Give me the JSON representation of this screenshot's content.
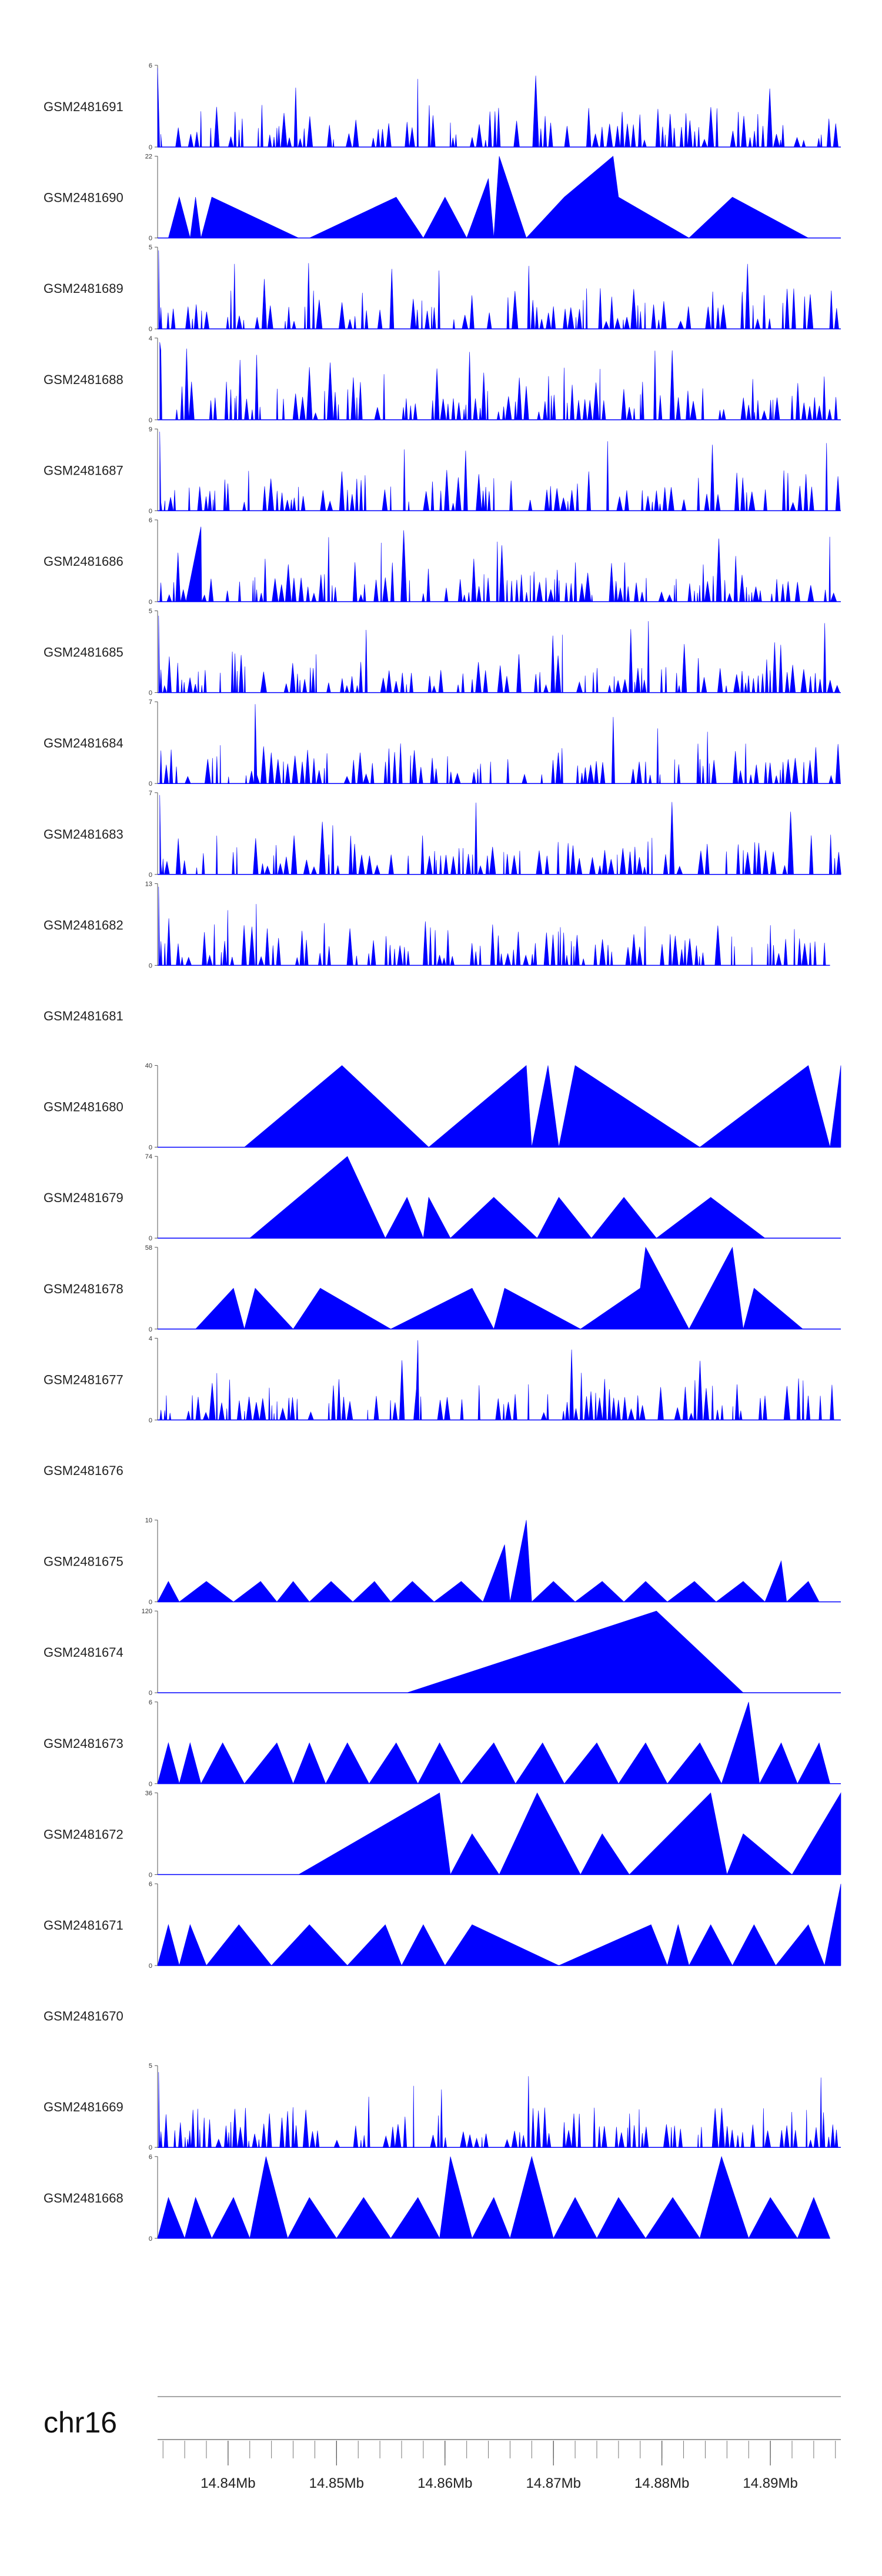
{
  "chart_data": {
    "type": "area",
    "color": "#0000ff",
    "chromosome": "chr16",
    "xlim": [
      14.8335,
      14.8965
    ],
    "x_ticks": [
      {
        "value": 14.84,
        "label": "14.84Mb"
      },
      {
        "value": 14.85,
        "label": "14.85Mb"
      },
      {
        "value": 14.86,
        "label": "14.86Mb"
      },
      {
        "value": 14.87,
        "label": "14.87Mb"
      },
      {
        "value": 14.88,
        "label": "14.88Mb"
      },
      {
        "value": 14.89,
        "label": "14.89Mb"
      }
    ],
    "tracks": [
      {
        "name": "GSM2481691",
        "ymax": 6,
        "ymax_label": "6",
        "ymin_label": "0",
        "pattern": "dense",
        "seed": 11,
        "points": [
          [
            14.8335,
            5.8
          ],
          [
            14.8338,
            0
          ],
          [
            14.8635,
            0
          ]
        ]
      },
      {
        "name": "GSM2481690",
        "ymax": 22,
        "ymax_label": "22",
        "ymin_label": "0",
        "pattern": "sparse",
        "seed": 23,
        "points": [
          [
            14.8345,
            0
          ],
          [
            14.8355,
            11
          ],
          [
            14.8365,
            0
          ],
          [
            14.837,
            11
          ],
          [
            14.8375,
            0
          ],
          [
            14.8385,
            11
          ],
          [
            14.8465,
            0
          ],
          [
            14.8475,
            0
          ],
          [
            14.8555,
            11
          ],
          [
            14.858,
            0
          ],
          [
            14.86,
            11
          ],
          [
            14.862,
            0
          ],
          [
            14.864,
            16
          ],
          [
            14.8645,
            0
          ],
          [
            14.865,
            22
          ],
          [
            14.8675,
            0
          ],
          [
            14.871,
            11
          ],
          [
            14.8755,
            22
          ],
          [
            14.876,
            11
          ],
          [
            14.8825,
            0
          ],
          [
            14.8865,
            11
          ],
          [
            14.8935,
            0
          ]
        ]
      },
      {
        "name": "GSM2481689",
        "ymax": 5,
        "ymax_label": "5",
        "ymin_label": "0",
        "pattern": "dense",
        "seed": 37,
        "points": [
          [
            14.8336,
            4.8
          ],
          [
            14.834,
            0
          ]
        ]
      },
      {
        "name": "GSM2481688",
        "ymax": 4,
        "ymax_label": "4",
        "ymin_label": "0",
        "pattern": "dense",
        "seed": 41,
        "points": [
          [
            14.8337,
            3.8
          ],
          [
            14.8341,
            0
          ]
        ]
      },
      {
        "name": "GSM2481687",
        "ymax": 9,
        "ymax_label": "9",
        "ymin_label": "0",
        "pattern": "dense",
        "seed": 53,
        "points": [
          [
            14.8337,
            8.7
          ],
          [
            14.8342,
            0
          ]
        ]
      },
      {
        "name": "GSM2481686",
        "ymax": 6,
        "ymax_label": "6",
        "ymin_label": "0",
        "pattern": "dense",
        "seed": 67,
        "points": [
          [
            14.8375,
            5.5
          ],
          [
            14.838,
            0
          ]
        ]
      },
      {
        "name": "GSM2481685",
        "ymax": 5,
        "ymax_label": "5",
        "ymin_label": "0",
        "pattern": "dense",
        "seed": 79,
        "points": [
          [
            14.8336,
            4.7
          ],
          [
            14.834,
            0
          ]
        ]
      },
      {
        "name": "GSM2481684",
        "ymax": 7,
        "ymax_label": "7",
        "ymin_label": "0",
        "pattern": "dense",
        "seed": 83,
        "points": [
          [
            14.8425,
            6.8
          ],
          [
            14.843,
            0
          ]
        ]
      },
      {
        "name": "GSM2481683",
        "ymax": 7,
        "ymax_label": "7",
        "ymin_label": "0",
        "pattern": "dense",
        "seed": 97,
        "points": [
          [
            14.8337,
            6.8
          ],
          [
            14.8341,
            0
          ]
        ]
      },
      {
        "name": "GSM2481682",
        "ymax": 13,
        "ymax_label": "13",
        "ymin_label": "0",
        "pattern": "dense",
        "seed": 101,
        "xend": 14.8955,
        "points": [
          [
            14.8336,
            12.5
          ],
          [
            14.834,
            0
          ]
        ]
      },
      {
        "name": "GSM2481681",
        "ymax": 0,
        "ymax_label": "",
        "ymin_label": "",
        "pattern": "empty",
        "seed": 0,
        "points": []
      },
      {
        "name": "GSM2481680",
        "ymax": 40,
        "ymax_label": "40",
        "ymin_label": "0",
        "pattern": "sparse",
        "seed": 3,
        "points": [
          [
            14.8415,
            0
          ],
          [
            14.8505,
            40
          ],
          [
            14.8585,
            0
          ],
          [
            14.8675,
            40
          ],
          [
            14.868,
            0
          ],
          [
            14.8695,
            40
          ],
          [
            14.8705,
            0
          ],
          [
            14.872,
            40
          ],
          [
            14.8835,
            0
          ],
          [
            14.8935,
            40
          ],
          [
            14.8955,
            0
          ],
          [
            14.8965,
            40
          ]
        ]
      },
      {
        "name": "GSM2481679",
        "ymax": 74,
        "ymax_label": "74",
        "ymin_label": "0",
        "pattern": "sparse",
        "seed": 5,
        "points": [
          [
            14.842,
            0
          ],
          [
            14.851,
            74
          ],
          [
            14.8545,
            0
          ],
          [
            14.8565,
            37
          ],
          [
            14.858,
            0
          ],
          [
            14.8585,
            37
          ],
          [
            14.8605,
            0
          ],
          [
            14.8605,
            0
          ],
          [
            14.8645,
            37
          ],
          [
            14.8685,
            0
          ],
          [
            14.8705,
            37
          ],
          [
            14.8735,
            0
          ],
          [
            14.8765,
            37
          ],
          [
            14.8795,
            0
          ],
          [
            14.8845,
            37
          ],
          [
            14.8895,
            0
          ]
        ]
      },
      {
        "name": "GSM2481678",
        "ymax": 58,
        "ymax_label": "58",
        "ymin_label": "0",
        "pattern": "sparse",
        "seed": 7,
        "points": [
          [
            14.837,
            0
          ],
          [
            14.8405,
            29
          ],
          [
            14.8415,
            0
          ],
          [
            14.8425,
            29
          ],
          [
            14.846,
            0
          ],
          [
            14.8485,
            29
          ],
          [
            14.855,
            0
          ],
          [
            14.8625,
            29
          ],
          [
            14.8645,
            0
          ],
          [
            14.8655,
            29
          ],
          [
            14.8725,
            0
          ],
          [
            14.878,
            29
          ],
          [
            14.8785,
            58
          ],
          [
            14.8825,
            0
          ],
          [
            14.8865,
            58
          ],
          [
            14.8875,
            0
          ],
          [
            14.8885,
            29
          ],
          [
            14.893,
            0
          ]
        ]
      },
      {
        "name": "GSM2481677",
        "ymax": 4,
        "ymax_label": "4",
        "ymin_label": "0",
        "pattern": "dense",
        "seed": 113,
        "points": [
          [
            14.8575,
            3.9
          ],
          [
            14.858,
            0
          ]
        ]
      },
      {
        "name": "GSM2481676",
        "ymax": 0,
        "ymax_label": "",
        "ymin_label": "",
        "pattern": "empty",
        "seed": 0,
        "points": []
      },
      {
        "name": "GSM2481675",
        "ymax": 10,
        "ymax_label": "10",
        "ymin_label": "0",
        "pattern": "sparse",
        "seed": 9,
        "points": [
          [
            14.8335,
            0
          ],
          [
            14.8345,
            2.5
          ],
          [
            14.8355,
            0
          ],
          [
            14.838,
            2.5
          ],
          [
            14.8405,
            0
          ],
          [
            14.843,
            2.5
          ],
          [
            14.8445,
            0
          ],
          [
            14.846,
            2.5
          ],
          [
            14.8475,
            0
          ],
          [
            14.8495,
            2.5
          ],
          [
            14.8515,
            0
          ],
          [
            14.8535,
            2.5
          ],
          [
            14.855,
            0
          ],
          [
            14.857,
            2.5
          ],
          [
            14.859,
            0
          ],
          [
            14.8615,
            2.5
          ],
          [
            14.8635,
            0
          ],
          [
            14.8655,
            7
          ],
          [
            14.866,
            0
          ],
          [
            14.8675,
            10
          ],
          [
            14.868,
            0
          ],
          [
            14.87,
            2.5
          ],
          [
            14.872,
            0
          ],
          [
            14.8745,
            2.5
          ],
          [
            14.8765,
            0
          ],
          [
            14.8785,
            2.5
          ],
          [
            14.8805,
            0
          ],
          [
            14.883,
            2.5
          ],
          [
            14.885,
            0
          ],
          [
            14.8875,
            2.5
          ],
          [
            14.8895,
            0
          ],
          [
            14.891,
            5
          ],
          [
            14.8915,
            0
          ],
          [
            14.8935,
            2.5
          ],
          [
            14.8945,
            0
          ]
        ]
      },
      {
        "name": "GSM2481674",
        "ymax": 120,
        "ymax_label": "120",
        "ymin_label": "0",
        "pattern": "sparse",
        "seed": 13,
        "points": [
          [
            14.8565,
            0
          ],
          [
            14.8795,
            120
          ],
          [
            14.8875,
            0
          ]
        ]
      },
      {
        "name": "GSM2481673",
        "ymax": 6,
        "ymax_label": "6",
        "ymin_label": "0",
        "pattern": "sparse",
        "seed": 17,
        "points": [
          [
            14.8335,
            0
          ],
          [
            14.8345,
            3
          ],
          [
            14.8355,
            0
          ],
          [
            14.8365,
            3
          ],
          [
            14.8375,
            0
          ],
          [
            14.8395,
            3
          ],
          [
            14.8415,
            0
          ],
          [
            14.8445,
            3
          ],
          [
            14.846,
            0
          ],
          [
            14.8475,
            3
          ],
          [
            14.849,
            0
          ],
          [
            14.851,
            3
          ],
          [
            14.853,
            0
          ],
          [
            14.8555,
            3
          ],
          [
            14.8575,
            0
          ],
          [
            14.8595,
            3
          ],
          [
            14.8615,
            0
          ],
          [
            14.8645,
            3
          ],
          [
            14.8665,
            0
          ],
          [
            14.869,
            3
          ],
          [
            14.871,
            0
          ],
          [
            14.874,
            3
          ],
          [
            14.876,
            0
          ],
          [
            14.8785,
            3
          ],
          [
            14.8805,
            0
          ],
          [
            14.8835,
            3
          ],
          [
            14.8855,
            0
          ],
          [
            14.888,
            6
          ],
          [
            14.889,
            0
          ],
          [
            14.891,
            3
          ],
          [
            14.8925,
            0
          ],
          [
            14.8945,
            3
          ],
          [
            14.8955,
            0
          ]
        ]
      },
      {
        "name": "GSM2481672",
        "ymax": 36,
        "ymax_label": "36",
        "ymin_label": "0",
        "pattern": "sparse",
        "seed": 19,
        "points": [
          [
            14.8465,
            0
          ],
          [
            14.8595,
            36
          ],
          [
            14.8605,
            0
          ],
          [
            14.8625,
            18
          ],
          [
            14.865,
            0
          ],
          [
            14.8685,
            36
          ],
          [
            14.8725,
            0
          ],
          [
            14.8745,
            18
          ],
          [
            14.877,
            0
          ],
          [
            14.8845,
            36
          ],
          [
            14.886,
            0
          ],
          [
            14.8875,
            18
          ],
          [
            14.892,
            0
          ],
          [
            14.8965,
            36
          ]
        ]
      },
      {
        "name": "GSM2481671",
        "ymax": 6,
        "ymax_label": "6",
        "ymin_label": "0",
        "pattern": "sparse",
        "seed": 29,
        "points": [
          [
            14.8335,
            0
          ],
          [
            14.8345,
            3
          ],
          [
            14.8355,
            0
          ],
          [
            14.8365,
            3
          ],
          [
            14.838,
            0
          ],
          [
            14.841,
            3
          ],
          [
            14.844,
            0
          ],
          [
            14.8475,
            3
          ],
          [
            14.851,
            0
          ],
          [
            14.8545,
            3
          ],
          [
            14.856,
            0
          ],
          [
            14.858,
            3
          ],
          [
            14.86,
            0
          ],
          [
            14.8625,
            3
          ],
          [
            14.8705,
            0
          ],
          [
            14.879,
            3
          ],
          [
            14.8805,
            0
          ],
          [
            14.8815,
            3
          ],
          [
            14.8825,
            0
          ],
          [
            14.8845,
            3
          ],
          [
            14.8865,
            0
          ],
          [
            14.8885,
            3
          ],
          [
            14.8905,
            0
          ],
          [
            14.8935,
            3
          ],
          [
            14.895,
            0
          ],
          [
            14.8965,
            6
          ]
        ]
      },
      {
        "name": "GSM2481670",
        "ymax": 0,
        "ymax_label": "",
        "ymin_label": "",
        "pattern": "empty",
        "seed": 0,
        "points": []
      },
      {
        "name": "GSM2481669",
        "ymax": 5,
        "ymax_label": "5",
        "ymin_label": "0",
        "pattern": "dense",
        "seed": 131,
        "points": [
          [
            14.8336,
            4.6
          ],
          [
            14.834,
            0
          ]
        ]
      },
      {
        "name": "GSM2481668",
        "ymax": 6,
        "ymax_label": "6",
        "ymin_label": "0",
        "pattern": "sparse",
        "seed": 31,
        "xend": 14.8955,
        "points": [
          [
            14.8335,
            0
          ],
          [
            14.8345,
            3
          ],
          [
            14.836,
            0
          ],
          [
            14.837,
            3
          ],
          [
            14.8385,
            0
          ],
          [
            14.8405,
            3
          ],
          [
            14.842,
            0
          ],
          [
            14.8435,
            6
          ],
          [
            14.8455,
            0
          ],
          [
            14.8475,
            3
          ],
          [
            14.85,
            0
          ],
          [
            14.8525,
            3
          ],
          [
            14.855,
            0
          ],
          [
            14.8575,
            3
          ],
          [
            14.8595,
            0
          ],
          [
            14.8605,
            6
          ],
          [
            14.8625,
            0
          ],
          [
            14.8645,
            3
          ],
          [
            14.866,
            0
          ],
          [
            14.868,
            6
          ],
          [
            14.87,
            0
          ],
          [
            14.872,
            3
          ],
          [
            14.874,
            0
          ],
          [
            14.876,
            3
          ],
          [
            14.8785,
            0
          ],
          [
            14.881,
            3
          ],
          [
            14.8835,
            0
          ],
          [
            14.8855,
            6
          ],
          [
            14.888,
            0
          ],
          [
            14.89,
            3
          ],
          [
            14.8925,
            0
          ],
          [
            14.894,
            3
          ],
          [
            14.8955,
            0
          ]
        ]
      }
    ]
  }
}
